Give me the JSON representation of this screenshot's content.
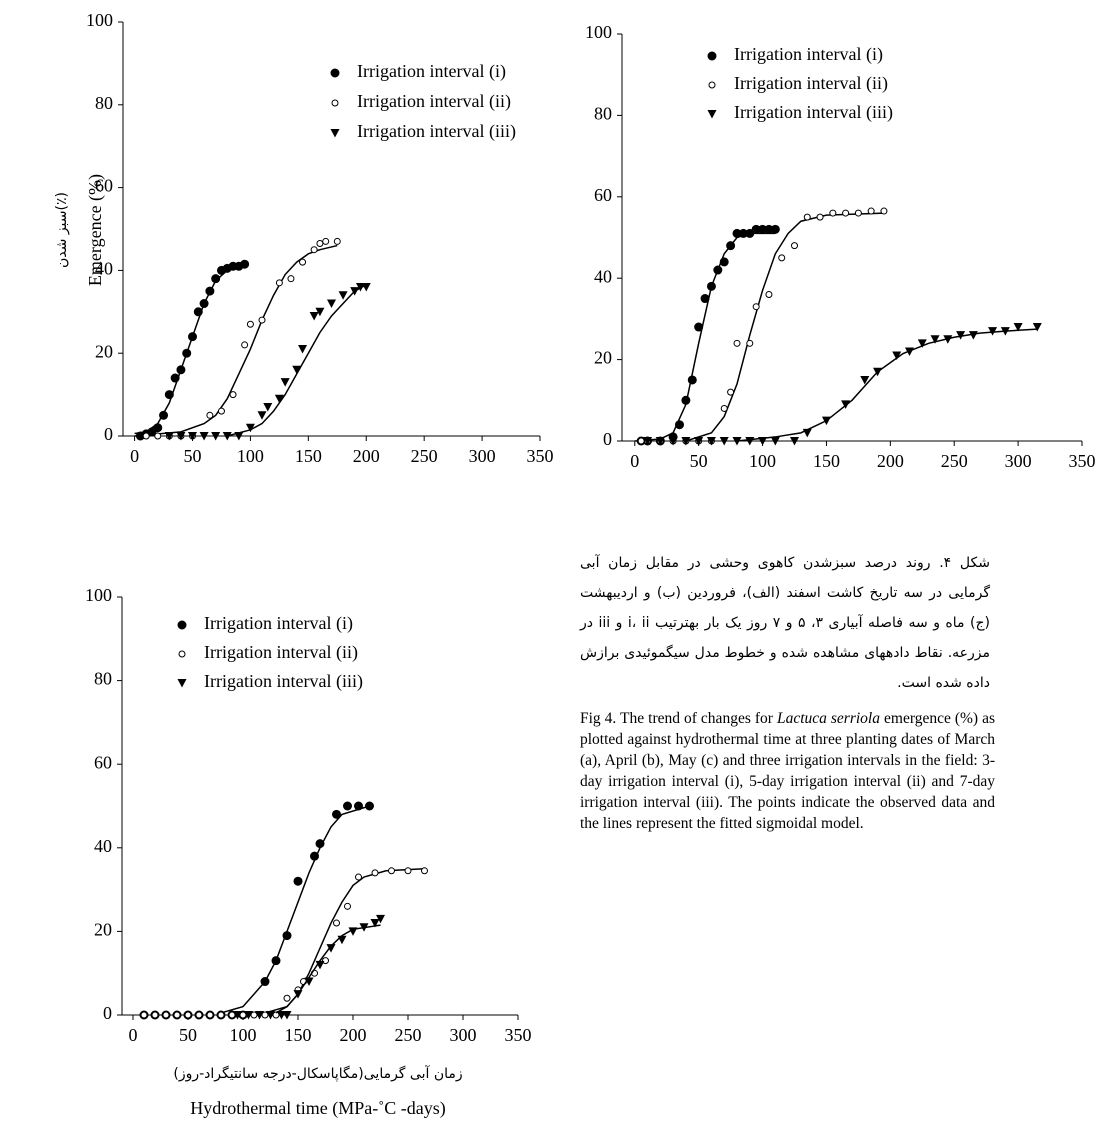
{
  "figure": {
    "y_label": "Emergence (%)",
    "y_label_fa": "سبز شدن(٪)",
    "x_label_fa": "زمان آبی گرمایی(مگاپاسکال-درجه سانتیگراد-روز)",
    "x_label": "Hydrothermal time (MPa-˚C -days)",
    "caption_fa": "شکل ۴. روند درصد سبزشدن کاهوی وحشی در مقابل زمان آبی گرمایی در سه تاریخ کاشت اسفند (الف)، فروردین (ب) و اردیبهشت (ج) ماه و سه فاصله آبیاری ۳، ۵ و ۷ روز یک بار بهترتیب i، ii و iii در مزرعه. نقاط دادههای مشاهده شده و خطوط مدل سیگموئیدی برازش داده شده است.",
    "caption_en": [
      "Fig 4. The trend of changes for ",
      "Lactuca serriola",
      " emergence (%) as plotted against hydrothermal time at three planting dates of March (a), April (b), May (c) and three irrigation intervals in the field: 3-day irrigation interval (i), 5-day irrigation interval (ii) and 7-day irrigation interval (iii). The points indicate the observed data and the lines represent the fitted sigmoidal model."
    ]
  },
  "chart_data": [
    {
      "type": "scatter",
      "xlim": [
        -10,
        350
      ],
      "ylim": [
        0,
        100
      ],
      "xticks": [
        0,
        50,
        100,
        150,
        200,
        250,
        300,
        350
      ],
      "yticks": [
        0,
        20,
        40,
        60,
        80,
        100
      ],
      "series": [
        {
          "name": "Irrigation interval (i)",
          "color": "#000000",
          "marker": "circle",
          "x": [
            5,
            10,
            15,
            20,
            25,
            30,
            35,
            40,
            45,
            50,
            55,
            60,
            65,
            70,
            75,
            80,
            85,
            90,
            95
          ],
          "values": [
            0,
            0.5,
            1,
            2,
            5,
            10,
            14,
            16,
            20,
            24,
            30,
            32,
            35,
            38,
            40,
            40.5,
            41,
            41,
            41.5
          ],
          "fit_x": [
            0,
            10,
            20,
            30,
            40,
            50,
            60,
            70,
            80,
            90,
            95
          ],
          "fit_values": [
            0.6,
            1,
            3,
            8,
            16,
            24,
            32,
            37.5,
            40,
            41,
            41.3
          ]
        },
        {
          "name": "Irrigation interval (ii)",
          "color": "#000000",
          "marker": "open-circle",
          "x": [
            10,
            20,
            30,
            40,
            50,
            65,
            75,
            85,
            95,
            100,
            110,
            125,
            135,
            145,
            155,
            160,
            165,
            175
          ],
          "values": [
            0,
            0,
            0,
            0,
            0,
            5,
            6,
            10,
            22,
            27,
            28,
            37,
            38,
            42,
            45,
            46.5,
            47,
            47
          ],
          "fit_x": [
            0,
            40,
            60,
            70,
            80,
            90,
            100,
            110,
            120,
            130,
            140,
            150,
            160,
            175
          ],
          "fit_values": [
            0,
            1,
            3,
            5,
            9,
            15,
            21,
            28,
            34,
            39,
            42,
            44,
            45,
            46
          ]
        },
        {
          "name": "Irrigation interval (iii)",
          "color": "#000000",
          "marker": "triangle-down",
          "x": [
            30,
            40,
            50,
            60,
            70,
            80,
            90,
            100,
            110,
            115,
            125,
            130,
            140,
            145,
            155,
            160,
            170,
            180,
            190,
            195,
            200
          ],
          "values": [
            0,
            0,
            0,
            0,
            0,
            0,
            0,
            2,
            5,
            7,
            9,
            13,
            16,
            21,
            29,
            30,
            32,
            34,
            35,
            36,
            36
          ],
          "fit_x": [
            80,
            100,
            110,
            120,
            130,
            140,
            150,
            160,
            170,
            180,
            190,
            200
          ],
          "fit_values": [
            0,
            1.5,
            3,
            6,
            10,
            15,
            20,
            25,
            29,
            32,
            35,
            36.5
          ]
        }
      ]
    },
    {
      "type": "scatter",
      "xlim": [
        -10,
        350
      ],
      "ylim": [
        0,
        100
      ],
      "xticks": [
        0,
        50,
        100,
        150,
        200,
        250,
        300,
        350
      ],
      "yticks": [
        0,
        20,
        40,
        60,
        80,
        100
      ],
      "series": [
        {
          "name": "Irrigation interval (i)",
          "color": "#000000",
          "marker": "circle",
          "x": [
            5,
            10,
            20,
            30,
            35,
            40,
            45,
            50,
            55,
            60,
            65,
            70,
            75,
            80,
            85,
            90,
            95,
            100,
            105,
            110
          ],
          "values": [
            0,
            0,
            0,
            1,
            4,
            10,
            15,
            28,
            35,
            38,
            42,
            44,
            48,
            51,
            51,
            51,
            52,
            52,
            52,
            52
          ],
          "fit_x": [
            0,
            20,
            30,
            40,
            50,
            60,
            70,
            80,
            90,
            110
          ],
          "fit_values": [
            0,
            0.5,
            2,
            9,
            24,
            38,
            46,
            50,
            51,
            51
          ]
        },
        {
          "name": "Irrigation interval (ii)",
          "color": "#000000",
          "marker": "open-circle",
          "x": [
            5,
            10,
            20,
            30,
            40,
            50,
            60,
            70,
            75,
            80,
            90,
            95,
            105,
            115,
            125,
            135,
            145,
            155,
            165,
            175,
            185,
            195
          ],
          "values": [
            0,
            0,
            0,
            0,
            0,
            0,
            0,
            8,
            12,
            24,
            24,
            33,
            36,
            45,
            48,
            55,
            55,
            56,
            56,
            56,
            56.5,
            56.5
          ],
          "fit_x": [
            40,
            60,
            70,
            80,
            90,
            100,
            110,
            120,
            130,
            150,
            195
          ],
          "fit_values": [
            0,
            2,
            6,
            14,
            26,
            37,
            46,
            51,
            54,
            55.5,
            56
          ]
        },
        {
          "name": "Irrigation interval (iii)",
          "color": "#000000",
          "marker": "triangle-down",
          "x": [
            10,
            20,
            30,
            40,
            50,
            60,
            70,
            80,
            90,
            100,
            110,
            125,
            135,
            150,
            165,
            180,
            190,
            205,
            215,
            225,
            235,
            245,
            255,
            265,
            280,
            290,
            300,
            315
          ],
          "values": [
            0,
            0,
            0,
            0,
            0,
            0,
            0,
            0,
            0,
            0,
            0,
            0,
            2,
            5,
            9,
            15,
            17,
            21,
            22,
            24,
            25,
            25,
            26,
            26,
            27,
            27,
            28,
            28
          ],
          "fit_x": [
            80,
            110,
            130,
            150,
            170,
            190,
            210,
            230,
            250,
            270,
            290,
            315
          ],
          "fit_values": [
            0,
            1,
            2,
            5,
            10,
            17,
            21.5,
            24,
            25.5,
            26.5,
            27,
            27.5
          ]
        }
      ]
    },
    {
      "type": "scatter",
      "xlim": [
        -10,
        350
      ],
      "ylim": [
        0,
        100
      ],
      "xticks": [
        0,
        50,
        100,
        150,
        200,
        250,
        300,
        350
      ],
      "yticks": [
        0,
        20,
        40,
        60,
        80,
        100
      ],
      "series": [
        {
          "name": "Irrigation interval (i)",
          "color": "#000000",
          "marker": "circle",
          "x": [
            10,
            20,
            30,
            40,
            50,
            60,
            70,
            80,
            90,
            100,
            120,
            130,
            140,
            150,
            165,
            170,
            185,
            195,
            205,
            215
          ],
          "values": [
            0,
            0,
            0,
            0,
            0,
            0,
            0,
            0,
            0,
            0,
            8,
            13,
            19,
            32,
            38,
            41,
            48,
            50,
            50,
            50
          ],
          "fit_x": [
            80,
            100,
            120,
            130,
            140,
            150,
            160,
            170,
            180,
            190,
            215
          ],
          "fit_values": [
            0.5,
            2,
            8,
            13,
            20,
            27,
            34,
            40,
            45,
            48,
            50
          ]
        },
        {
          "name": "Irrigation interval (ii)",
          "color": "#000000",
          "marker": "open-circle",
          "x": [
            10,
            20,
            30,
            40,
            50,
            60,
            70,
            80,
            90,
            100,
            110,
            120,
            130,
            140,
            150,
            155,
            165,
            175,
            185,
            195,
            205,
            220,
            235,
            250,
            265
          ],
          "values": [
            0,
            0,
            0,
            0,
            0,
            0,
            0,
            0,
            0,
            0,
            0,
            0,
            0,
            4,
            6,
            8,
            10,
            13,
            22,
            26,
            33,
            34,
            34.5,
            34.5,
            34.5
          ],
          "fit_x": [
            120,
            140,
            150,
            160,
            170,
            180,
            190,
            200,
            210,
            230,
            265
          ],
          "fit_values": [
            0.5,
            2,
            5,
            10,
            16,
            22,
            27,
            31,
            33,
            34.5,
            35
          ]
        },
        {
          "name": "Irrigation interval (iii)",
          "color": "#000000",
          "marker": "triangle-down",
          "x": [
            95,
            105,
            115,
            125,
            135,
            140,
            150,
            160,
            170,
            180,
            190,
            200,
            210,
            220,
            225
          ],
          "values": [
            0,
            0,
            0,
            0,
            0,
            0,
            5,
            8,
            12,
            16,
            18,
            20,
            21,
            22,
            23
          ],
          "fit_x": [
            130,
            140,
            150,
            160,
            170,
            180,
            190,
            200,
            225
          ],
          "fit_values": [
            0.5,
            2,
            5,
            9,
            13,
            16.5,
            19,
            20.5,
            21.5
          ]
        }
      ]
    }
  ]
}
